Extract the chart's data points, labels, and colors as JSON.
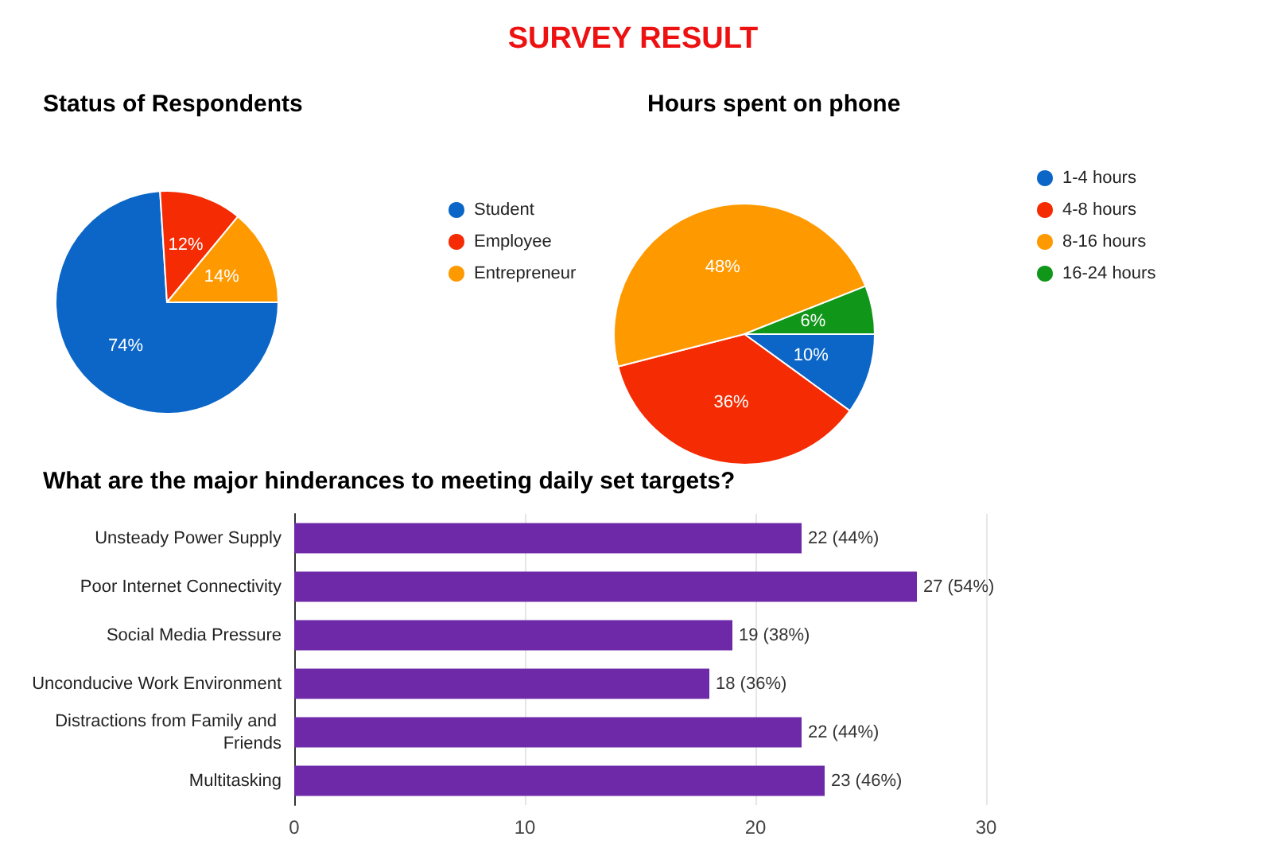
{
  "chart_data": [
    {
      "type": "other",
      "title": "SURVEY RESULT"
    },
    {
      "type": "pie",
      "title": "Status of Respondents",
      "categories": [
        "Student",
        "Employee",
        "Entrepreneur"
      ],
      "values": [
        74,
        12,
        14
      ],
      "colors": [
        "#0b66c8",
        "#f42b03",
        "#ff9900"
      ],
      "value_labels": [
        "74%",
        "12%",
        "14%"
      ],
      "legend": "right"
    },
    {
      "type": "pie",
      "title": "Hours spent on phone",
      "categories": [
        "1-4 hours",
        "4-8 hours",
        "8-16 hours",
        "16-24 hours"
      ],
      "values": [
        10,
        36,
        48,
        6
      ],
      "colors": [
        "#0b66c8",
        "#f42b03",
        "#ff9900",
        "#109618"
      ],
      "value_labels": [
        "10%",
        "36%",
        "48%",
        "6%"
      ],
      "legend": "top right"
    },
    {
      "type": "bar",
      "orientation": "horizontal",
      "title": "What are the major hinderances to meeting daily set targets?",
      "categories": [
        "Unsteady Power Supply",
        "Poor Internet Connectivity",
        "Social Media Pressure",
        "Unconducive Work Environment",
        "Distractions from Family and Friends",
        "Multitasking"
      ],
      "values": [
        22,
        27,
        19,
        18,
        22,
        23
      ],
      "value_labels": [
        "22 (44%)",
        "27 (54%)",
        "19 (38%)",
        "18 (36%)",
        "22 (44%)",
        "23 (46%)"
      ],
      "color": "#6d29a8",
      "xlim": [
        0,
        30
      ],
      "xticks": [
        0,
        10,
        20,
        30
      ],
      "grid": "x"
    }
  ]
}
